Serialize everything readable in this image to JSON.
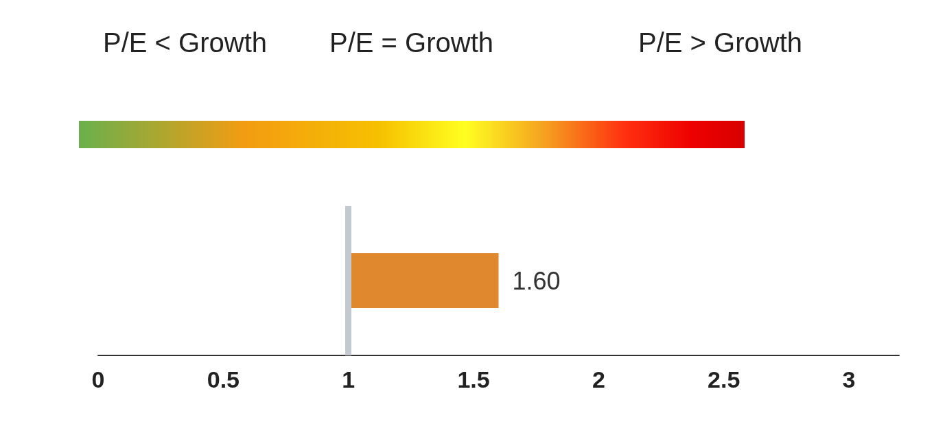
{
  "chart_data": {
    "type": "bar",
    "orientation": "horizontal",
    "categories": [
      null
    ],
    "base": [
      1
    ],
    "values": [
      0.6
    ],
    "value_labels": [
      "1.60"
    ],
    "color": "#e0882e",
    "xlim": [
      0,
      3.2
    ],
    "xticks": [
      0,
      0.5,
      1,
      1.5,
      2,
      2.5,
      3
    ],
    "tick_labels": "x",
    "ref_lines": [
      {
        "axis": "x",
        "value": 1,
        "color": "#c4c8d0"
      }
    ],
    "annotations": [
      "P/E < Growth",
      "P/E = Growth",
      "P/E > Growth"
    ]
  }
}
